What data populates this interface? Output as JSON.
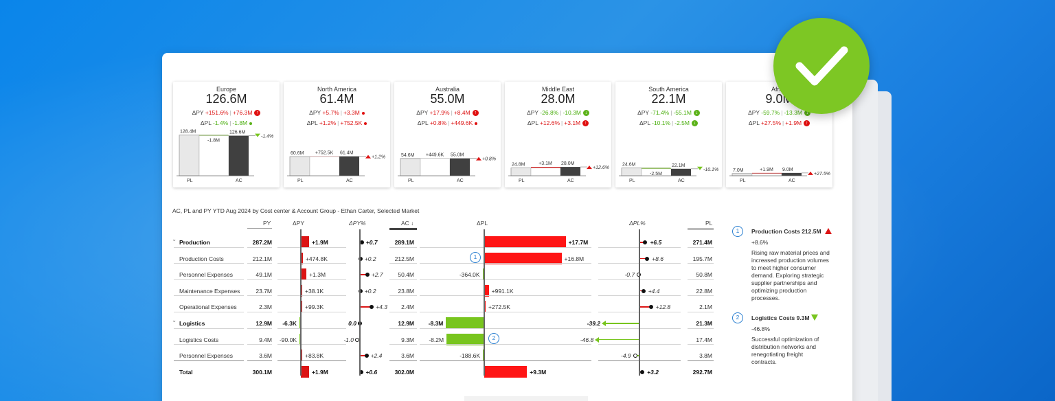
{
  "kpis": [
    {
      "name": "Europe",
      "value": "126.6M",
      "dpy_pct": "+151.6%",
      "dpy_abs": "+76.3M",
      "dpy_icon": "r",
      "dpl_pct": "-1.4%",
      "dpl_abs": "-1.8M",
      "dpl_icon": "gs",
      "pl_label": "128.4M",
      "delta_label": "-1.8M",
      "ac_label": "126.6M",
      "end_label": "-1.4%",
      "end_dir": "down"
    },
    {
      "name": "North America",
      "value": "61.4M",
      "dpy_pct": "+5.7%",
      "dpy_abs": "+3.3M",
      "dpy_icon": "rs",
      "dpl_pct": "+1.2%",
      "dpl_abs": "+752.5K",
      "dpl_icon": "rs",
      "pl_label": "60.6M",
      "delta_label": "+752.5K",
      "ac_label": "61.4M",
      "end_label": "+1.2%",
      "end_dir": "up"
    },
    {
      "name": "Australia",
      "value": "55.0M",
      "dpy_pct": "+17.9%",
      "dpy_abs": "+8.4M",
      "dpy_icon": "r",
      "dpl_pct": "+0.8%",
      "dpl_abs": "+449.6K",
      "dpl_icon": "rs",
      "pl_label": "54.6M",
      "delta_label": "+449.6K",
      "ac_label": "55.0M",
      "end_label": "+0.8%",
      "end_dir": "up"
    },
    {
      "name": "Middle East",
      "value": "28.0M",
      "dpy_pct": "-26.8%",
      "dpy_abs": "-10.3M",
      "dpy_icon": "g",
      "dpl_pct": "+12.6%",
      "dpl_abs": "+3.1M",
      "dpl_icon": "r",
      "pl_label": "24.8M",
      "delta_label": "+3.1M",
      "ac_label": "28.0M",
      "end_label": "+12.6%",
      "end_dir": "up"
    },
    {
      "name": "South America",
      "value": "22.1M",
      "dpy_pct": "-71.4%",
      "dpy_abs": "-55.1M",
      "dpy_icon": "g",
      "dpl_pct": "-10.1%",
      "dpl_abs": "-2.5M",
      "dpl_icon": "g",
      "pl_label": "24.6M",
      "delta_label": "-2.5M",
      "ac_label": "22.1M",
      "end_label": "-10.1%",
      "end_dir": "down"
    },
    {
      "name": "Africa",
      "value": "9.0M",
      "dpy_pct": "-59.7%",
      "dpy_abs": "-13.3M",
      "dpy_icon": "g",
      "dpl_pct": "+27.5%",
      "dpl_abs": "+1.9M",
      "dpl_icon": "r",
      "pl_label": "7.0M",
      "delta_label": "+1.9M",
      "ac_label": "9.0M",
      "end_label": "+27.5%",
      "end_dir": "up"
    }
  ],
  "axis_labels": {
    "pl": "PL",
    "ac": "AC"
  },
  "table": {
    "title": "AC, PL and PY YTD Aug 2024 by Cost center & Account Group - Ethan Carter, Selected Market",
    "headers": {
      "py": "PY",
      "dpy": "ΔPY",
      "dpy_pct": "ΔPY%",
      "ac": "AC ↓",
      "dpl": "ΔPL",
      "dpl_pct": "ΔPL%",
      "pl": "PL"
    },
    "rows": [
      {
        "label": "Production",
        "bold": true,
        "collapse": true,
        "py": "287.2M",
        "dpy": "+1.9M",
        "dpy_v": 1.9,
        "dpy_pct": "+0.7",
        "dpy_pct_v": 0.7,
        "ac": "289.1M",
        "dpl": "+17.7M",
        "dpl_v": 17.7,
        "dpl_pct": "+6.5",
        "dpl_pct_v": 6.5,
        "pl": "271.4M"
      },
      {
        "label": "Production Costs",
        "bold": false,
        "py": "212.1M",
        "dpy": "+474.8K",
        "dpy_v": 0.47,
        "dpy_pct": "+0.2",
        "dpy_pct_v": 0.2,
        "ac": "212.5M",
        "dpl": "+16.8M",
        "dpl_v": 16.8,
        "dpl_pct": "+8.6",
        "dpl_pct_v": 8.6,
        "pl": "195.7M",
        "marker": "1"
      },
      {
        "label": "Personnel Expenses",
        "bold": false,
        "py": "49.1M",
        "dpy": "+1.3M",
        "dpy_v": 1.3,
        "dpy_pct": "+2.7",
        "dpy_pct_v": 2.7,
        "ac": "50.4M",
        "dpl": "-364.0K",
        "dpl_v": -0.36,
        "dpl_pct": "-0.7",
        "dpl_pct_v": -0.7,
        "pl": "50.8M"
      },
      {
        "label": "Maintenance Expenses",
        "bold": false,
        "py": "23.7M",
        "dpy": "+38.1K",
        "dpy_v": 0.04,
        "dpy_pct": "+0.2",
        "dpy_pct_v": 0.2,
        "ac": "23.8M",
        "dpl": "+991.1K",
        "dpl_v": 0.99,
        "dpl_pct": "+4.4",
        "dpl_pct_v": 4.4,
        "pl": "22.8M"
      },
      {
        "label": "Operational Expenses",
        "bold": false,
        "py": "2.3M",
        "dpy": "+99.3K",
        "dpy_v": 0.1,
        "dpy_pct": "+4.3",
        "dpy_pct_v": 4.3,
        "ac": "2.4M",
        "dpl": "+272.5K",
        "dpl_v": 0.27,
        "dpl_pct": "+12.8",
        "dpl_pct_v": 12.8,
        "pl": "2.1M"
      },
      {
        "label": "Logistics",
        "bold": true,
        "collapse": true,
        "py": "12.9M",
        "dpy": "-6.3K",
        "dpy_v": -0.006,
        "dpy_pct": "0.0",
        "dpy_pct_v": 0.0,
        "ac": "12.9M",
        "dpl": "-8.3M",
        "dpl_v": -8.3,
        "dpl_pct": "-39.2",
        "dpl_pct_v": -39.2,
        "pl": "21.3M"
      },
      {
        "label": "Logistics Costs",
        "bold": false,
        "py": "9.4M",
        "dpy": "-90.0K",
        "dpy_v": -0.09,
        "dpy_pct": "-1.0",
        "dpy_pct_v": -1.0,
        "ac": "9.3M",
        "dpl": "-8.2M",
        "dpl_v": -8.2,
        "dpl_pct": "-46.8",
        "dpl_pct_v": -46.8,
        "pl": "17.4M",
        "marker": "2"
      },
      {
        "label": "Personnel Expenses",
        "bold": false,
        "py": "3.6M",
        "dpy": "+83.8K",
        "dpy_v": 0.08,
        "dpy_pct": "+2.4",
        "dpy_pct_v": 2.4,
        "ac": "3.6M",
        "dpl": "-188.6K",
        "dpl_v": -0.19,
        "dpl_pct": "-4.9",
        "dpl_pct_v": -4.9,
        "pl": "3.8M"
      },
      {
        "label": "Total",
        "bold": true,
        "py": "300.1M",
        "dpy": "+1.9M",
        "dpy_v": 1.9,
        "dpy_pct": "+0.6",
        "dpy_pct_v": 0.6,
        "ac": "302.0M",
        "dpl": "+9.3M",
        "dpl_v": 9.3,
        "dpl_pct": "+3.2",
        "dpl_pct_v": 3.2,
        "pl": "292.7M"
      }
    ]
  },
  "notes": [
    {
      "num": "1",
      "title": "Production Costs 212.5M",
      "dir": "up",
      "pct": "+8.6%",
      "text": [
        "Rising raw material prices and",
        "increased production volumes",
        "to meet higher consumer",
        "demand. Exploring strategic",
        "supplier partnerships and",
        "optimizing production",
        "processes."
      ]
    },
    {
      "num": "2",
      "title": "Logistics Costs 9.3M",
      "dir": "down",
      "pct": "-46.8%",
      "text": [
        "Successful optimization of",
        "distribution networks and",
        "renegotiating freight",
        "contracts."
      ]
    }
  ],
  "colors": {
    "negative": "#dc1414",
    "positive": "#78c51e",
    "ac_bar": "#404040",
    "pl_bar": "#e8e8e8",
    "check": "#7dc724"
  }
}
